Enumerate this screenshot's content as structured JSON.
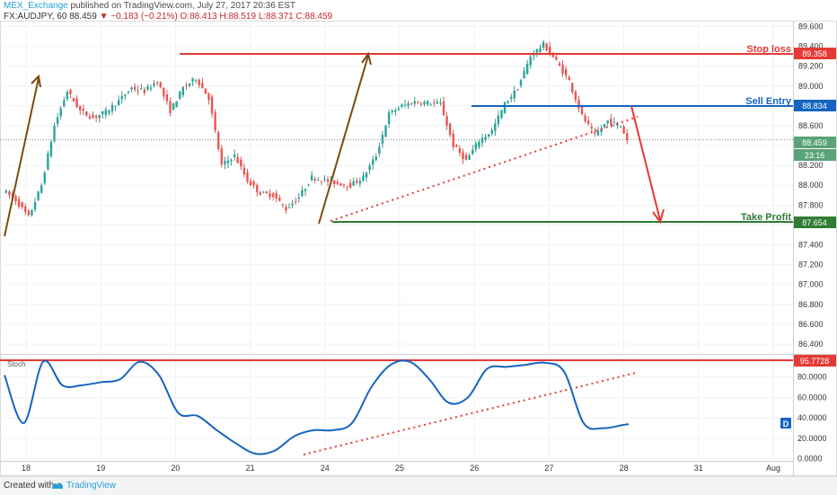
{
  "header": {
    "publisher": "MEX_Exchange",
    "published_text": "published on TradingView.com, July 27, 2017 20:36 EST",
    "symbol": "FX:AUDJPY, 60",
    "last": "88.459",
    "change": "▼ −0.183 (−0.21%)",
    "ohlc": "O:88.413 H:88.519 L:88.371 C:88.459"
  },
  "footer": {
    "created_with": "Created with",
    "brand": "TradingView"
  },
  "chart_data": [
    {
      "type": "candlestick",
      "symbol": "FX:AUDJPY",
      "interval": "60",
      "ylim": [
        86.3,
        89.65
      ],
      "y_ticks": [
        "89.600",
        "89.400",
        "89.200",
        "89.000",
        "88.800",
        "88.600",
        "88.400",
        "88.200",
        "88.000",
        "87.800",
        "87.600",
        "87.400",
        "87.200",
        "87.000",
        "86.800",
        "86.600",
        "86.400"
      ],
      "x_ticks": [
        "18",
        "19",
        "20",
        "21",
        "24",
        "25",
        "26",
        "27",
        "28",
        "31",
        "Aug"
      ],
      "price_path": [
        [
          0,
          87.95
        ],
        [
          2,
          87.85
        ],
        [
          4,
          87.68
        ],
        [
          6,
          88.0
        ],
        [
          8,
          88.6
        ],
        [
          10,
          88.95
        ],
        [
          12,
          88.75
        ],
        [
          14,
          88.68
        ],
        [
          16,
          88.74
        ],
        [
          18,
          88.85
        ],
        [
          20,
          88.98
        ],
        [
          22,
          88.95
        ],
        [
          24,
          89.05
        ],
        [
          26,
          88.75
        ],
        [
          28,
          88.98
        ],
        [
          30,
          89.08
        ],
        [
          32,
          88.88
        ],
        [
          34,
          88.2
        ],
        [
          36,
          88.3
        ],
        [
          38,
          88.05
        ],
        [
          40,
          87.92
        ],
        [
          42,
          87.9
        ],
        [
          44,
          87.76
        ],
        [
          46,
          87.88
        ],
        [
          48,
          88.08
        ],
        [
          50,
          88.05
        ],
        [
          52,
          88.02
        ],
        [
          54,
          88.0
        ],
        [
          56,
          88.08
        ],
        [
          58,
          88.3
        ],
        [
          60,
          88.72
        ],
        [
          62,
          88.8
        ],
        [
          64,
          88.84
        ],
        [
          66,
          88.83
        ],
        [
          68,
          88.82
        ],
        [
          70,
          88.4
        ],
        [
          72,
          88.25
        ],
        [
          74,
          88.45
        ],
        [
          76,
          88.55
        ],
        [
          78,
          88.82
        ],
        [
          80,
          88.98
        ],
        [
          82,
          89.3
        ],
        [
          84,
          89.42
        ],
        [
          86,
          89.25
        ],
        [
          88,
          89.05
        ],
        [
          90,
          88.7
        ],
        [
          92,
          88.5
        ],
        [
          94,
          88.65
        ],
        [
          96,
          88.6
        ],
        [
          97,
          88.46
        ]
      ],
      "annotations": [
        {
          "label": "Stop loss",
          "value": "89.358"
        },
        {
          "label": "Sell Entry",
          "value": "88.834"
        },
        {
          "label": "Take Profit",
          "value": "87.654"
        }
      ],
      "current_price": "88.459",
      "countdown": "23:16"
    },
    {
      "type": "line",
      "name": "Stoch",
      "ylim": [
        -2,
        100
      ],
      "y_ticks": [
        "80.0000",
        "60.0000",
        "40.0000",
        "20.0000",
        "0.0000"
      ],
      "level": "95.7728",
      "badge": "D",
      "x": [
        0,
        3,
        6,
        9,
        12,
        15,
        18,
        21,
        24,
        27,
        30,
        33,
        36,
        39,
        42,
        45,
        48,
        51,
        54,
        57,
        60,
        63,
        66,
        69,
        72,
        75,
        78,
        81,
        84,
        87,
        90,
        93,
        96,
        97
      ],
      "values": [
        82,
        35,
        95,
        72,
        72,
        75,
        78,
        95,
        82,
        45,
        42,
        28,
        15,
        5,
        8,
        22,
        28,
        28,
        35,
        70,
        92,
        95,
        78,
        55,
        60,
        88,
        90,
        92,
        94,
        85,
        35,
        30,
        33,
        34
      ]
    }
  ]
}
